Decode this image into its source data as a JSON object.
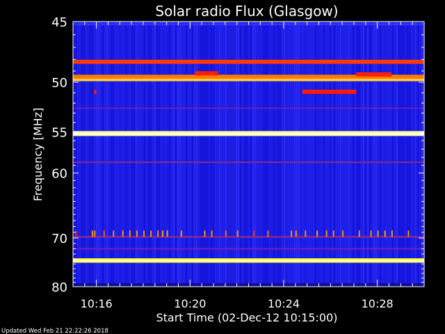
{
  "chart_data": {
    "type": "heatmap",
    "title": "Solar radio Flux (Glasgow)",
    "xlabel": "Start Time (02-Dec-12 10:15:00)",
    "ylabel": "Frequency [MHz]",
    "x_unit": "minutes after 10:15:00",
    "xlim": [
      0,
      15
    ],
    "ylim": [
      45,
      80
    ],
    "y_scale": "reciprocal",
    "y_ticks": [
      45,
      50,
      55,
      60,
      70,
      80
    ],
    "y_tick_labels": [
      "45",
      "50",
      "55",
      "60",
      "70",
      "80"
    ],
    "x_ticks": [
      1,
      5,
      9,
      13
    ],
    "x_tick_labels": [
      "10:16",
      "10:20",
      "10:24",
      "10:28"
    ],
    "grid": false,
    "background_color": "#1a1ae6",
    "bands": [
      {
        "freq": 45.2,
        "width": 0.15,
        "color": "#3333ff"
      },
      {
        "freq": 48.2,
        "width": 0.35,
        "color": "#ff3a00"
      },
      {
        "freq": 49.6,
        "width": 0.55,
        "color": "#ff7a00"
      },
      {
        "freq": 49.8,
        "width": 0.22,
        "color": "#ffd040"
      },
      {
        "freq": 52.5,
        "width": 0.12,
        "color": "#7a20b0"
      },
      {
        "freq": 55.2,
        "width": 0.55,
        "color": "#ffff80"
      },
      {
        "freq": 55.25,
        "width": 0.22,
        "color": "#ffffff"
      },
      {
        "freq": 58.6,
        "width": 0.18,
        "color": "#8a2a8a"
      },
      {
        "freq": 69.8,
        "width": 0.3,
        "color": "#8a2a8a"
      },
      {
        "freq": 72.0,
        "width": 0.25,
        "color": "#7a20b0"
      },
      {
        "freq": 74.3,
        "width": 0.9,
        "color": "#ffff30"
      },
      {
        "freq": 74.35,
        "width": 0.35,
        "color": "#ffffc0"
      }
    ],
    "bursts": [
      {
        "t": 5.2,
        "t_end": 6.2,
        "freq": 49.2,
        "color": "#ff2000"
      },
      {
        "t": 12.1,
        "t_end": 13.6,
        "freq": 49.3,
        "color": "#ff2000"
      },
      {
        "t": 9.8,
        "t_end": 12.1,
        "freq": 50.9,
        "color": "#ff1a00"
      },
      {
        "t": 0.9,
        "t_end": 1.0,
        "freq": 50.9,
        "color": "#ff1a00"
      }
    ],
    "spikes_freq": 69.3,
    "spikes": [
      {
        "t": 0.1,
        "color": "#ff3000"
      },
      {
        "t": 0.8,
        "color": "#ff9000"
      },
      {
        "t": 0.9,
        "color": "#ff9000"
      },
      {
        "t": 1.3,
        "color": "#ff6000"
      },
      {
        "t": 1.7,
        "color": "#ff9000"
      },
      {
        "t": 2.1,
        "color": "#ff9000"
      },
      {
        "t": 2.4,
        "color": "#ff9000"
      },
      {
        "t": 2.7,
        "color": "#ff9000"
      },
      {
        "t": 3.0,
        "color": "#ff9000"
      },
      {
        "t": 3.3,
        "color": "#ff9000"
      },
      {
        "t": 3.6,
        "color": "#ff9000"
      },
      {
        "t": 3.8,
        "color": "#ffa000"
      },
      {
        "t": 4.0,
        "color": "#ffa000"
      },
      {
        "t": 4.6,
        "color": "#ff9000"
      },
      {
        "t": 5.6,
        "color": "#ff9000"
      },
      {
        "t": 5.9,
        "color": "#ff9000"
      },
      {
        "t": 6.5,
        "color": "#ff7000"
      },
      {
        "t": 7.0,
        "color": "#ff9000"
      },
      {
        "t": 7.7,
        "color": "#ff3000"
      },
      {
        "t": 8.3,
        "color": "#ff7000"
      },
      {
        "t": 9.3,
        "color": "#ff9000"
      },
      {
        "t": 9.5,
        "color": "#ff9000"
      },
      {
        "t": 9.9,
        "color": "#ff9000"
      },
      {
        "t": 10.4,
        "color": "#ffa000"
      },
      {
        "t": 10.8,
        "color": "#ff9000"
      },
      {
        "t": 11.1,
        "color": "#ff9000"
      },
      {
        "t": 11.5,
        "color": "#ff9000"
      },
      {
        "t": 12.2,
        "color": "#ff9000"
      },
      {
        "t": 12.7,
        "color": "#ff9000"
      },
      {
        "t": 13.0,
        "color": "#ff9000"
      },
      {
        "t": 13.3,
        "color": "#ffa000"
      },
      {
        "t": 13.6,
        "color": "#ff9000"
      },
      {
        "t": 14.3,
        "color": "#ff9000"
      }
    ]
  },
  "footer": {
    "updated": "Updated Wed Feb 21 22:22:26 2018"
  }
}
